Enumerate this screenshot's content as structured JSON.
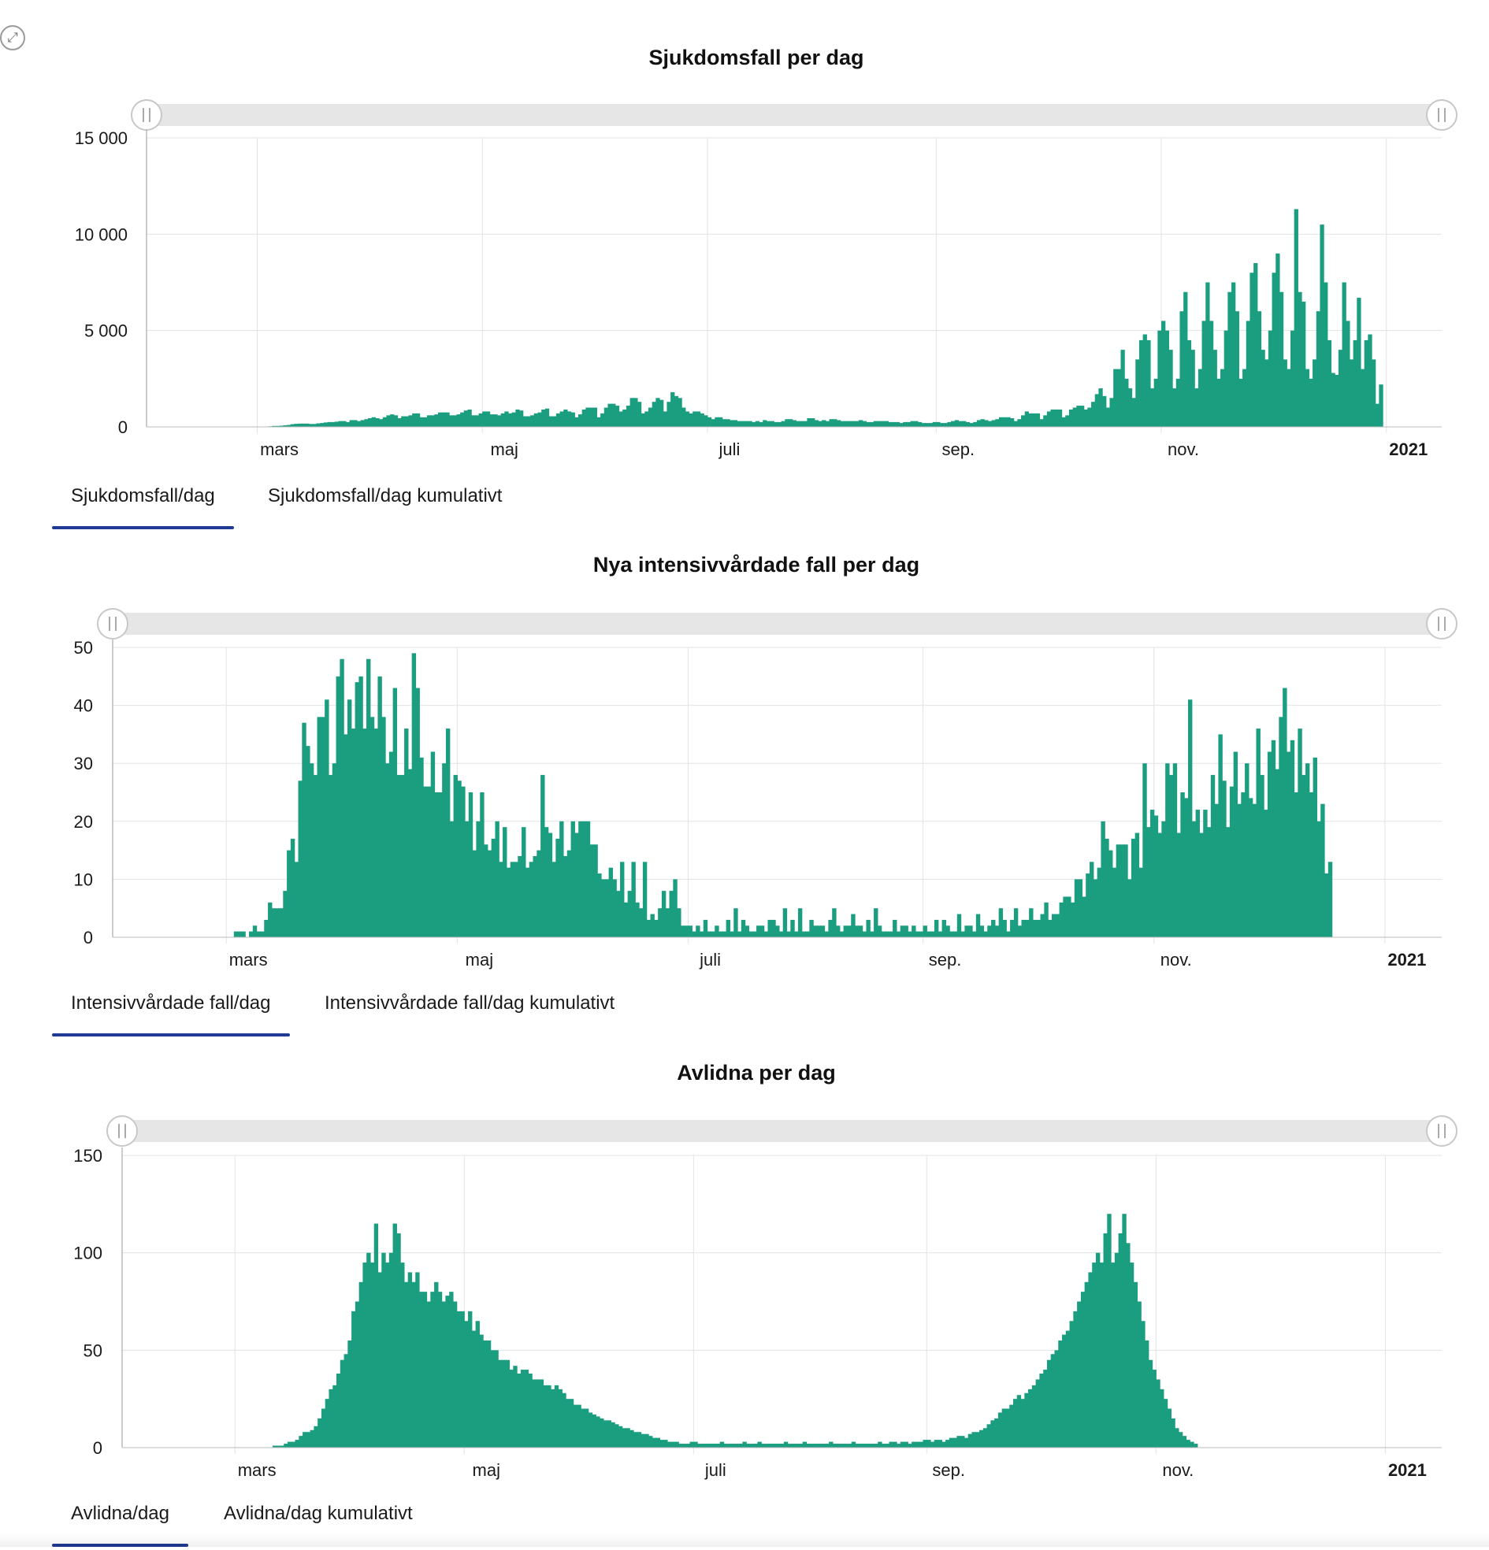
{
  "expand_icon": "expand-arrows-icon",
  "colors": {
    "bar": "#1b9e80",
    "grid": "#e3e3e3",
    "tab_underline": "#1f3a93",
    "scrollbar": "#e6e6e6"
  },
  "charts": [
    {
      "title": "Sjukdomsfall per dag",
      "tabs": [
        "Sjukdomsfall/dag",
        "Sjukdomsfall/dag kumulativt"
      ],
      "active_tab": 0
    },
    {
      "title": "Nya intensivvårdade fall per dag",
      "tabs": [
        "Intensivvårdade fall/dag",
        "Intensivvårdade fall/dag kumulativt"
      ],
      "active_tab": 0
    },
    {
      "title": "Avlidna per dag",
      "tabs": [
        "Avlidna/dag",
        "Avlidna/dag kumulativt"
      ],
      "active_tab": 0
    }
  ],
  "chart_data": [
    {
      "type": "bar",
      "title": "Sjukdomsfall per dag",
      "xlabel": "",
      "ylabel": "",
      "ylim": [
        0,
        15000
      ],
      "yticks": [
        0,
        5000,
        10000,
        15000
      ],
      "ytick_labels": [
        "0",
        "5 000",
        "10 000",
        "15 000"
      ],
      "x_start": "2020-01-31",
      "xtick_labels": [
        "mars",
        "maj",
        "juli",
        "sep.",
        "nov.",
        "2021"
      ],
      "xtick_days": [
        30,
        91,
        152,
        214,
        275,
        336
      ],
      "xlim_days": [
        0,
        351
      ],
      "values": [
        0,
        0,
        0,
        0,
        0,
        0,
        0,
        0,
        0,
        0,
        0,
        0,
        0,
        0,
        0,
        0,
        0,
        0,
        0,
        0,
        0,
        0,
        0,
        0,
        0,
        0,
        0,
        0,
        0,
        5,
        10,
        10,
        20,
        30,
        50,
        50,
        60,
        80,
        100,
        140,
        160,
        170,
        170,
        170,
        150,
        150,
        180,
        200,
        230,
        250,
        250,
        270,
        300,
        300,
        250,
        350,
        350,
        300,
        350,
        400,
        450,
        500,
        450,
        400,
        500,
        600,
        650,
        600,
        450,
        550,
        550,
        600,
        700,
        700,
        500,
        500,
        600,
        600,
        650,
        750,
        750,
        750,
        600,
        600,
        650,
        750,
        850,
        900,
        600,
        600,
        700,
        800,
        800,
        650,
        650,
        600,
        700,
        800,
        700,
        750,
        900,
        850,
        550,
        550,
        600,
        700,
        750,
        900,
        950,
        550,
        550,
        700,
        800,
        900,
        800,
        750,
        500,
        650,
        900,
        1000,
        1000,
        1000,
        500,
        700,
        1000,
        1200,
        1200,
        1100,
        800,
        900,
        1100,
        1500,
        1500,
        1300,
        700,
        800,
        1000,
        1300,
        1500,
        1400,
        800,
        1300,
        1800,
        1600,
        1500,
        1000,
        800,
        700,
        800,
        800,
        700,
        600,
        500,
        400,
        500,
        500,
        400,
        400,
        350,
        350,
        300,
        300,
        300,
        300,
        250,
        300,
        250,
        350,
        300,
        300,
        250,
        250,
        300,
        400,
        400,
        350,
        300,
        300,
        300,
        450,
        450,
        350,
        300,
        350,
        300,
        400,
        400,
        350,
        300,
        300,
        300,
        300,
        300,
        350,
        300,
        250,
        250,
        300,
        300,
        300,
        300,
        250,
        250,
        250,
        200,
        250,
        250,
        300,
        300,
        250,
        200,
        200,
        200,
        250,
        250,
        200,
        200,
        250,
        300,
        350,
        300,
        300,
        250,
        200,
        250,
        350,
        400,
        350,
        300,
        350,
        400,
        500,
        500,
        500,
        450,
        300,
        400,
        600,
        800,
        700,
        700,
        700,
        400,
        600,
        800,
        900,
        900,
        900,
        500,
        600,
        900,
        1000,
        1100,
        1100,
        900,
        1000,
        1300,
        1700,
        2000,
        1600,
        1000,
        1500,
        3000,
        3000,
        4000,
        2500,
        2000,
        1500,
        3500,
        4500,
        4800,
        4500,
        2000,
        2500,
        5000,
        5500,
        5000,
        4000,
        2000,
        2500,
        6000,
        7000,
        4500,
        4000,
        2000,
        3000,
        5500,
        7500,
        5500,
        4000,
        2500,
        3000,
        5000,
        7000,
        7500,
        6000,
        2500,
        3000,
        5500,
        8000,
        8500,
        6000,
        4000,
        3500,
        5000,
        8000,
        9000,
        7000,
        3500,
        3000,
        5000,
        11300,
        7000,
        6500,
        3000,
        2500,
        3500,
        6000,
        10500,
        7500,
        4500,
        2800,
        2700,
        4000,
        7500,
        5500,
        3500,
        4500,
        6700,
        3000,
        4500,
        4800,
        3500,
        1200,
        2200
      ]
    },
    {
      "type": "bar",
      "title": "Nya intensivvårdade fall per dag",
      "xlabel": "",
      "ylabel": "",
      "ylim": [
        0,
        50
      ],
      "yticks": [
        0,
        10,
        20,
        30,
        40,
        50
      ],
      "ytick_labels": [
        "0",
        "10",
        "20",
        "30",
        "40",
        "50"
      ],
      "x_start": "2020-01-31",
      "xtick_labels": [
        "mars",
        "maj",
        "juli",
        "sep.",
        "nov.",
        "2021"
      ],
      "xtick_days": [
        30,
        91,
        152,
        214,
        275,
        336
      ],
      "xlim_days": [
        0,
        351
      ],
      "values": [
        0,
        0,
        0,
        0,
        0,
        0,
        0,
        0,
        0,
        0,
        0,
        0,
        0,
        0,
        0,
        0,
        0,
        0,
        0,
        0,
        0,
        0,
        0,
        0,
        0,
        0,
        0,
        0,
        0,
        0,
        0,
        0,
        1,
        1,
        1,
        0,
        1,
        2,
        1,
        1,
        3,
        6,
        5,
        5,
        5,
        8,
        15,
        17,
        13,
        27,
        37,
        33,
        30,
        28,
        38,
        38,
        41,
        28,
        30,
        45,
        48,
        35,
        41,
        36,
        44,
        45,
        36,
        48,
        38,
        36,
        45,
        38,
        30,
        32,
        43,
        28,
        28,
        36,
        29,
        49,
        43,
        31,
        26,
        26,
        32,
        25,
        25,
        30,
        36,
        20,
        28,
        27,
        26,
        20,
        25,
        15,
        20,
        25,
        16,
        15,
        17,
        20,
        13,
        19,
        12,
        13,
        13,
        14,
        19,
        12,
        13,
        14,
        15,
        28,
        19,
        18,
        13,
        17,
        20,
        14,
        15,
        20,
        18,
        20,
        20,
        20,
        16,
        16,
        11,
        10,
        10,
        12,
        10,
        8,
        13,
        6,
        8,
        13,
        6,
        5,
        13,
        3,
        4,
        3,
        5,
        8,
        5,
        8,
        10,
        5,
        2,
        2,
        2,
        1,
        2,
        1,
        3,
        1,
        1,
        2,
        1,
        1,
        3,
        1,
        5,
        1,
        3,
        2,
        1,
        1,
        2,
        2,
        1,
        3,
        3,
        2,
        1,
        5,
        1,
        3,
        1,
        5,
        1,
        1,
        3,
        2,
        2,
        2,
        1,
        3,
        5,
        2,
        1,
        2,
        2,
        4,
        2,
        2,
        1,
        3,
        1,
        5,
        2,
        1,
        1,
        1,
        3,
        1,
        2,
        2,
        1,
        2,
        1,
        1,
        2,
        1,
        1,
        3,
        1,
        3,
        2,
        1,
        1,
        4,
        1,
        2,
        2,
        1,
        4,
        2,
        1,
        2,
        3,
        2,
        5,
        3,
        1,
        3,
        5,
        2,
        3,
        3,
        5,
        3,
        3,
        4,
        6,
        3,
        4,
        4,
        6,
        7,
        7,
        6,
        10,
        10,
        7,
        11,
        13,
        10,
        12,
        20,
        17,
        15,
        12,
        16,
        16,
        16,
        10,
        17,
        18,
        12,
        30,
        19,
        22,
        21,
        18,
        20,
        30,
        28,
        30,
        18,
        25,
        24,
        41,
        20,
        22,
        18,
        22,
        19,
        28,
        23,
        35,
        27,
        19,
        26,
        32,
        23,
        25,
        30,
        24,
        23,
        36,
        28,
        22,
        32,
        34,
        29,
        38,
        43,
        32,
        34,
        25,
        36,
        28,
        30,
        25,
        31,
        20,
        23,
        11,
        13
      ]
    },
    {
      "type": "bar",
      "title": "Avlidna per dag",
      "xlabel": "",
      "ylabel": "",
      "ylim": [
        0,
        150
      ],
      "yticks": [
        0,
        50,
        100,
        150
      ],
      "ytick_labels": [
        "0",
        "50",
        "100",
        "150"
      ],
      "x_start": "2020-01-31",
      "xtick_labels": [
        "mars",
        "maj",
        "juli",
        "sep.",
        "nov.",
        "2021"
      ],
      "xtick_days": [
        30,
        91,
        152,
        214,
        275,
        336
      ],
      "xlim_days": [
        0,
        351
      ],
      "values": [
        0,
        0,
        0,
        0,
        0,
        0,
        0,
        0,
        0,
        0,
        0,
        0,
        0,
        0,
        0,
        0,
        0,
        0,
        0,
        0,
        0,
        0,
        0,
        0,
        0,
        0,
        0,
        0,
        0,
        0,
        0,
        0,
        0,
        0,
        0,
        0,
        0,
        0,
        0,
        0,
        1,
        1,
        1,
        2,
        3,
        3,
        4,
        6,
        8,
        8,
        9,
        11,
        15,
        20,
        25,
        30,
        32,
        38,
        45,
        48,
        55,
        70,
        75,
        85,
        95,
        100,
        95,
        115,
        90,
        100,
        95,
        100,
        115,
        110,
        95,
        85,
        90,
        85,
        90,
        80,
        80,
        75,
        80,
        85,
        80,
        75,
        78,
        80,
        75,
        70,
        70,
        65,
        70,
        60,
        65,
        58,
        55,
        55,
        50,
        50,
        45,
        45,
        45,
        40,
        42,
        38,
        40,
        40,
        38,
        35,
        35,
        35,
        32,
        32,
        30,
        32,
        30,
        28,
        25,
        25,
        22,
        22,
        20,
        20,
        18,
        17,
        16,
        15,
        14,
        14,
        13,
        12,
        11,
        10,
        10,
        9,
        8,
        8,
        7,
        7,
        6,
        5,
        5,
        4,
        4,
        3,
        3,
        3,
        2,
        2,
        2,
        3,
        3,
        2,
        2,
        2,
        2,
        2,
        2,
        3,
        2,
        2,
        2,
        2,
        2,
        3,
        2,
        2,
        2,
        3,
        2,
        2,
        2,
        2,
        2,
        2,
        3,
        2,
        2,
        2,
        2,
        3,
        2,
        2,
        2,
        2,
        2,
        2,
        3,
        2,
        2,
        2,
        2,
        2,
        3,
        2,
        2,
        2,
        2,
        2,
        2,
        3,
        2,
        2,
        3,
        3,
        2,
        3,
        3,
        2,
        3,
        3,
        3,
        4,
        4,
        3,
        4,
        4,
        3,
        4,
        5,
        5,
        6,
        6,
        5,
        7,
        8,
        8,
        9,
        10,
        12,
        14,
        15,
        18,
        20,
        20,
        22,
        25,
        27,
        25,
        28,
        30,
        32,
        35,
        38,
        40,
        45,
        48,
        50,
        55,
        58,
        60,
        65,
        70,
        75,
        80,
        85,
        90,
        95,
        100,
        95,
        110,
        120,
        95,
        100,
        110,
        120,
        105,
        95,
        85,
        75,
        65,
        55,
        45,
        40,
        35,
        30,
        25,
        20,
        15,
        10,
        8,
        6,
        4,
        3,
        2
      ]
    }
  ]
}
